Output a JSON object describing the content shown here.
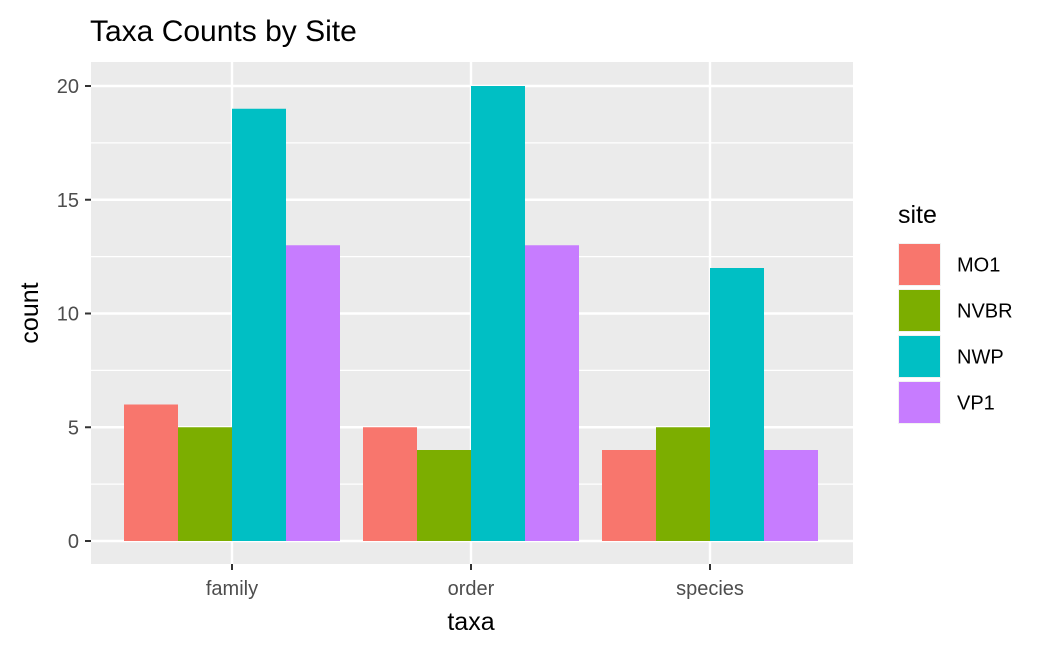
{
  "chart_data": {
    "type": "bar",
    "title": "Taxa Counts by Site",
    "xlabel": "taxa",
    "ylabel": "count",
    "categories": [
      "family",
      "order",
      "species"
    ],
    "series": [
      {
        "name": "MO1",
        "color": "#F8766D",
        "values": [
          6,
          5,
          4
        ]
      },
      {
        "name": "NVBR",
        "color": "#7CAE00",
        "values": [
          5,
          4,
          5
        ]
      },
      {
        "name": "NWP",
        "color": "#00BFC4",
        "values": [
          19,
          20,
          12
        ]
      },
      {
        "name": "VP1",
        "color": "#C77CFF",
        "values": [
          13,
          13,
          4
        ]
      }
    ],
    "ylim": [
      0,
      20
    ],
    "yticks": [
      "0",
      "5",
      "10",
      "15",
      "20"
    ],
    "legend": {
      "title": "site",
      "position": "right"
    },
    "grid": true,
    "panel_background": "#EBEBEB",
    "grid_color": "#FFFFFF"
  }
}
